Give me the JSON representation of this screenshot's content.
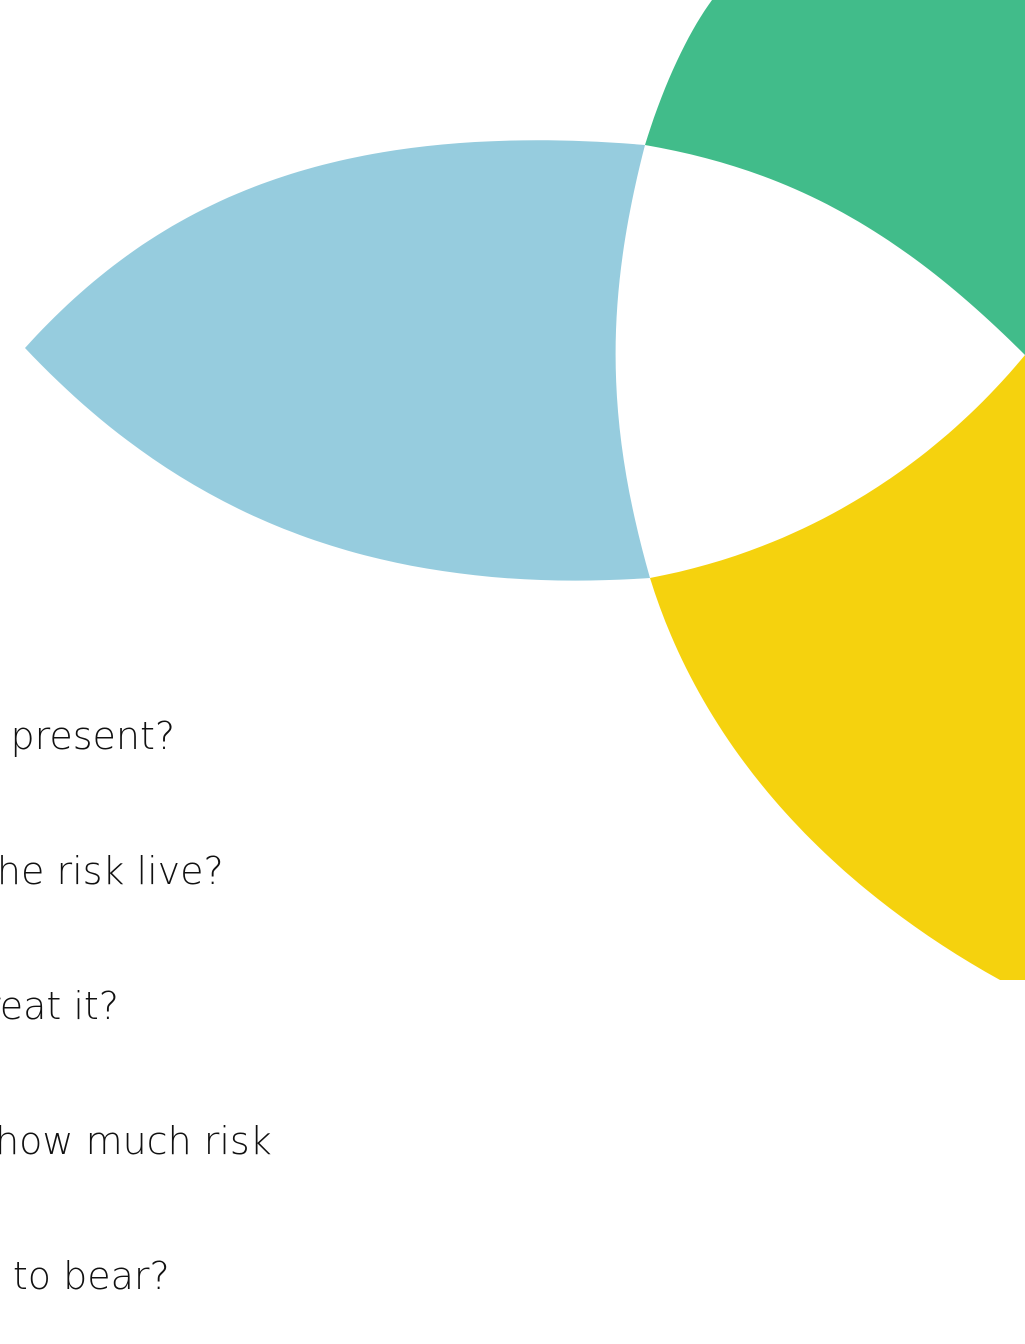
{
  "colors": {
    "blue_petal": "#96CCDE",
    "green_petal": "#41BC8A",
    "yellow_petal": "#F5D20E",
    "background": "#FFFFFF",
    "text": "#111111"
  },
  "bullets": [
    "e present?",
    "the risk live?",
    "treat it?",
    "– how much risk",
    "g to bear?"
  ]
}
